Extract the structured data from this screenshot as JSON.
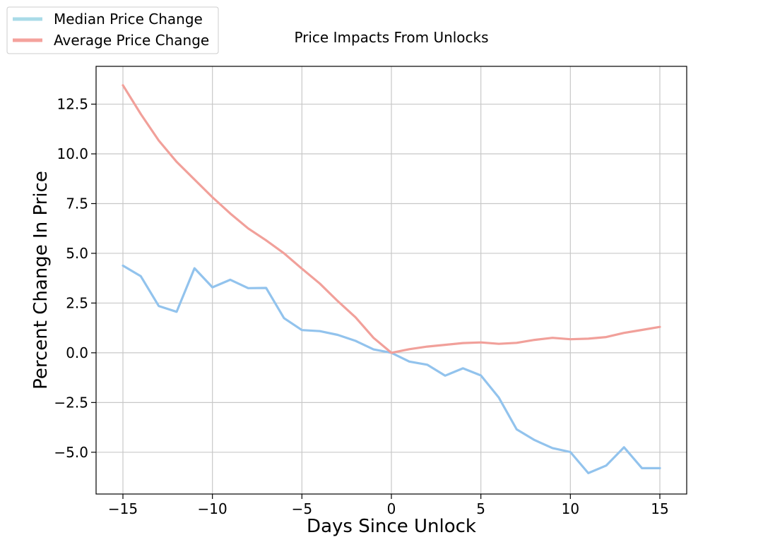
{
  "chart_data": {
    "type": "line",
    "title": "Price Impacts From Unlocks",
    "xlabel": "Days Since Unlock",
    "ylabel": "Percent Change In Price",
    "xlim": [
      -16.5,
      16.5
    ],
    "ylim": [
      -7.1,
      14.4
    ],
    "x_ticks": [
      -15,
      -10,
      -5,
      0,
      5,
      10,
      15
    ],
    "x_tick_labels": [
      "−15",
      "−10",
      "−5",
      "0",
      "5",
      "10",
      "15"
    ],
    "y_ticks": [
      -5.0,
      -2.5,
      0.0,
      2.5,
      5.0,
      7.5,
      10.0,
      12.5
    ],
    "y_tick_labels": [
      "−5.0",
      "−2.5",
      "0.0",
      "2.5",
      "5.0",
      "7.5",
      "10.0",
      "12.5"
    ],
    "grid": true,
    "legend_position": "top-left",
    "x": [
      -15,
      -14,
      -13,
      -12,
      -11,
      -10,
      -9,
      -8,
      -7,
      -6,
      -5,
      -4,
      -3,
      -2,
      -1,
      0,
      1,
      2,
      3,
      4,
      5,
      6,
      7,
      8,
      9,
      10,
      11,
      12,
      13,
      14,
      15
    ],
    "series": [
      {
        "name": "Median Price Change",
        "color": "#92c3ed",
        "legend_color": "#a9dbe8",
        "values": [
          4.38,
          3.85,
          2.35,
          2.06,
          4.25,
          3.29,
          3.67,
          3.25,
          3.26,
          1.74,
          1.14,
          1.09,
          0.9,
          0.6,
          0.17,
          0.0,
          -0.44,
          -0.6,
          -1.15,
          -0.78,
          -1.14,
          -2.25,
          -3.85,
          -4.39,
          -4.79,
          -4.99,
          -6.05,
          -5.67,
          -4.75,
          -5.8,
          -5.8
        ]
      },
      {
        "name": "Average Price Change",
        "color": "#f1a09a",
        "legend_color": "#f4a29c",
        "values": [
          13.45,
          12.0,
          10.67,
          9.6,
          8.71,
          7.82,
          7.0,
          6.25,
          5.65,
          5.0,
          4.23,
          3.48,
          2.6,
          1.78,
          0.75,
          0.0,
          0.18,
          0.31,
          0.4,
          0.49,
          0.52,
          0.45,
          0.5,
          0.65,
          0.75,
          0.68,
          0.71,
          0.79,
          1.0,
          1.15,
          1.3
        ]
      }
    ]
  }
}
